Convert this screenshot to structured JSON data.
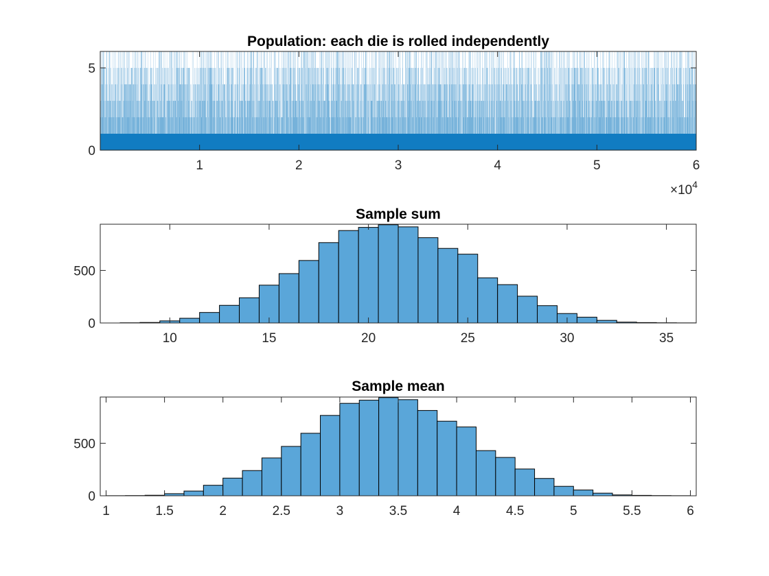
{
  "colors": {
    "bar_fill": "#5aa6d9",
    "bar_edge": "#000000",
    "population_bar": "#0072BD",
    "axis": "#262626",
    "background": "#ffffff"
  },
  "chart_data": [
    {
      "type": "bar",
      "title": "Population: each die is rolled independently",
      "xlabel": "",
      "ylabel": "",
      "xlim": [
        1,
        60000
      ],
      "ylim": [
        0,
        6
      ],
      "x_ticks": [
        10000,
        20000,
        30000,
        40000,
        50000,
        60000
      ],
      "x_tick_labels": [
        "1",
        "2",
        "3",
        "4",
        "5",
        "6"
      ],
      "x_exponent_label": {
        "base": "×10",
        "exponent": "4"
      },
      "y_ticks": [
        0,
        5
      ],
      "y_tick_labels": [
        "0",
        "5"
      ],
      "values_description_free": true,
      "value_set": [
        1,
        2,
        3,
        4,
        5,
        6
      ],
      "n_points": 60000
    },
    {
      "type": "bar",
      "title": "Sample sum",
      "xlabel": "",
      "ylabel": "",
      "xlim": [
        6.5,
        36.5
      ],
      "ylim": [
        0,
        940
      ],
      "x_ticks": [
        10,
        15,
        20,
        25,
        30,
        35
      ],
      "x_tick_labels": [
        "10",
        "15",
        "20",
        "25",
        "30",
        "35"
      ],
      "y_ticks": [
        0,
        500
      ],
      "y_tick_labels": [
        "0",
        "500"
      ],
      "bin_edges": [
        7.5,
        8.5,
        9.5,
        10.5,
        11.5,
        12.5,
        13.5,
        14.5,
        15.5,
        16.5,
        17.5,
        18.5,
        19.5,
        20.5,
        21.5,
        22.5,
        23.5,
        24.5,
        25.5,
        26.5,
        27.5,
        28.5,
        29.5,
        30.5,
        31.5,
        32.5,
        33.5,
        34.5,
        35.5,
        36.5
      ],
      "values": [
        2,
        5,
        20,
        45,
        100,
        168,
        240,
        360,
        470,
        595,
        765,
        880,
        910,
        935,
        915,
        812,
        710,
        655,
        430,
        365,
        255,
        165,
        90,
        55,
        25,
        8,
        4,
        2,
        1
      ]
    },
    {
      "type": "bar",
      "title": "Sample mean",
      "xlabel": "",
      "ylabel": "",
      "xlim": [
        0.95,
        6.05
      ],
      "ylim": [
        0,
        940
      ],
      "x_ticks": [
        1,
        1.5,
        2,
        2.5,
        3,
        3.5,
        4,
        4.5,
        5,
        5.5,
        6
      ],
      "x_tick_labels": [
        "1",
        "1.5",
        "2",
        "2.5",
        "3",
        "3.5",
        "4",
        "4.5",
        "5",
        "5.5",
        "6"
      ],
      "y_ticks": [
        0,
        500
      ],
      "y_tick_labels": [
        "0",
        "500"
      ],
      "bin_edges": [
        1.0,
        1.1667,
        1.3333,
        1.5,
        1.6667,
        1.8333,
        2.0,
        2.1667,
        2.3333,
        2.5,
        2.6667,
        2.8333,
        3.0,
        3.1667,
        3.3333,
        3.5,
        3.6667,
        3.8333,
        4.0,
        4.1667,
        4.3333,
        4.5,
        4.6667,
        4.8333,
        5.0,
        5.1667,
        5.3333,
        5.5,
        5.6667,
        5.8333,
        6.0
      ],
      "values": [
        1,
        2,
        5,
        20,
        45,
        100,
        168,
        240,
        360,
        470,
        595,
        765,
        880,
        910,
        935,
        915,
        812,
        710,
        655,
        430,
        365,
        255,
        165,
        90,
        55,
        25,
        8,
        4,
        2,
        1
      ]
    }
  ]
}
